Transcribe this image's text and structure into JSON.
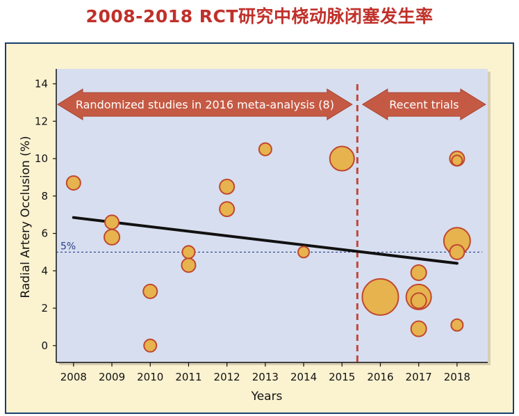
{
  "page_title": "2008-2018 RCT研究中桡动脉闭塞发生率",
  "chart_data": {
    "type": "scatter",
    "subtype": "bubble",
    "title": "2008-2018 RCT研究中桡动脉闭塞发生率",
    "xlabel": "Years",
    "ylabel": "Radial Artery Occlusion (%)",
    "xlim": [
      2007.55,
      2018.8
    ],
    "ylim": [
      -0.9,
      14.8
    ],
    "x_ticks": [
      2008,
      2009,
      2010,
      2011,
      2012,
      2013,
      2014,
      2015,
      2016,
      2017,
      2018
    ],
    "y_ticks": [
      0,
      2,
      4,
      6,
      8,
      10,
      12,
      14
    ],
    "grid": false,
    "points": [
      {
        "x": 2008,
        "y": 8.7,
        "size": 1
      },
      {
        "x": 2009,
        "y": 6.6,
        "size": 1
      },
      {
        "x": 2009,
        "y": 5.8,
        "size": 1.1
      },
      {
        "x": 2010,
        "y": 2.9,
        "size": 1
      },
      {
        "x": 2010,
        "y": 0.0,
        "size": 0.9
      },
      {
        "x": 2011,
        "y": 5.0,
        "size": 0.9
      },
      {
        "x": 2011,
        "y": 4.3,
        "size": 1
      },
      {
        "x": 2012,
        "y": 8.5,
        "size": 1.05
      },
      {
        "x": 2012,
        "y": 7.3,
        "size": 1.05
      },
      {
        "x": 2013,
        "y": 10.5,
        "size": 0.9
      },
      {
        "x": 2014,
        "y": 5.0,
        "size": 0.8
      },
      {
        "x": 2015,
        "y": 10.0,
        "size": 1.75
      },
      {
        "x": 2016,
        "y": 2.6,
        "size": 2.6
      },
      {
        "x": 2017,
        "y": 3.9,
        "size": 1.1
      },
      {
        "x": 2017,
        "y": 2.6,
        "size": 1.8
      },
      {
        "x": 2017,
        "y": 2.4,
        "size": 1.1
      },
      {
        "x": 2017,
        "y": 0.9,
        "size": 1.1
      },
      {
        "x": 2018,
        "y": 10.0,
        "size": 1.05
      },
      {
        "x": 2018,
        "y": 9.9,
        "size": 0.75
      },
      {
        "x": 2018,
        "y": 5.6,
        "size": 1.9
      },
      {
        "x": 2018,
        "y": 5.0,
        "size": 1.05
      },
      {
        "x": 2018,
        "y": 1.1,
        "size": 0.85
      }
    ],
    "trend_line": {
      "x": [
        2008,
        2018
      ],
      "y": [
        6.85,
        4.4
      ]
    },
    "reference_line": {
      "y": 5,
      "label": "5%"
    },
    "divider_x": 2015.4,
    "annotations": [
      {
        "text": "Randomized studies in 2016 meta-analysis (8)",
        "x_start": 2007.55,
        "x_end": 2015.3,
        "y": 12.9
      },
      {
        "text": "Recent trials",
        "x_start": 2015.5,
        "x_end": 2018.78,
        "y": 12.9
      }
    ],
    "colors": {
      "plot_background": "#d7deef",
      "panel_background": "#fbf2d0",
      "panel_border": "#1a3e6e",
      "bubble_fill": "#e6b34e",
      "bubble_stroke": "#c0472e",
      "arrow_fill": "#c55a44",
      "divider": "#c0473a",
      "reference_line": "#2a3f88",
      "trend_line": "#111111",
      "title": "#c0302a"
    }
  }
}
